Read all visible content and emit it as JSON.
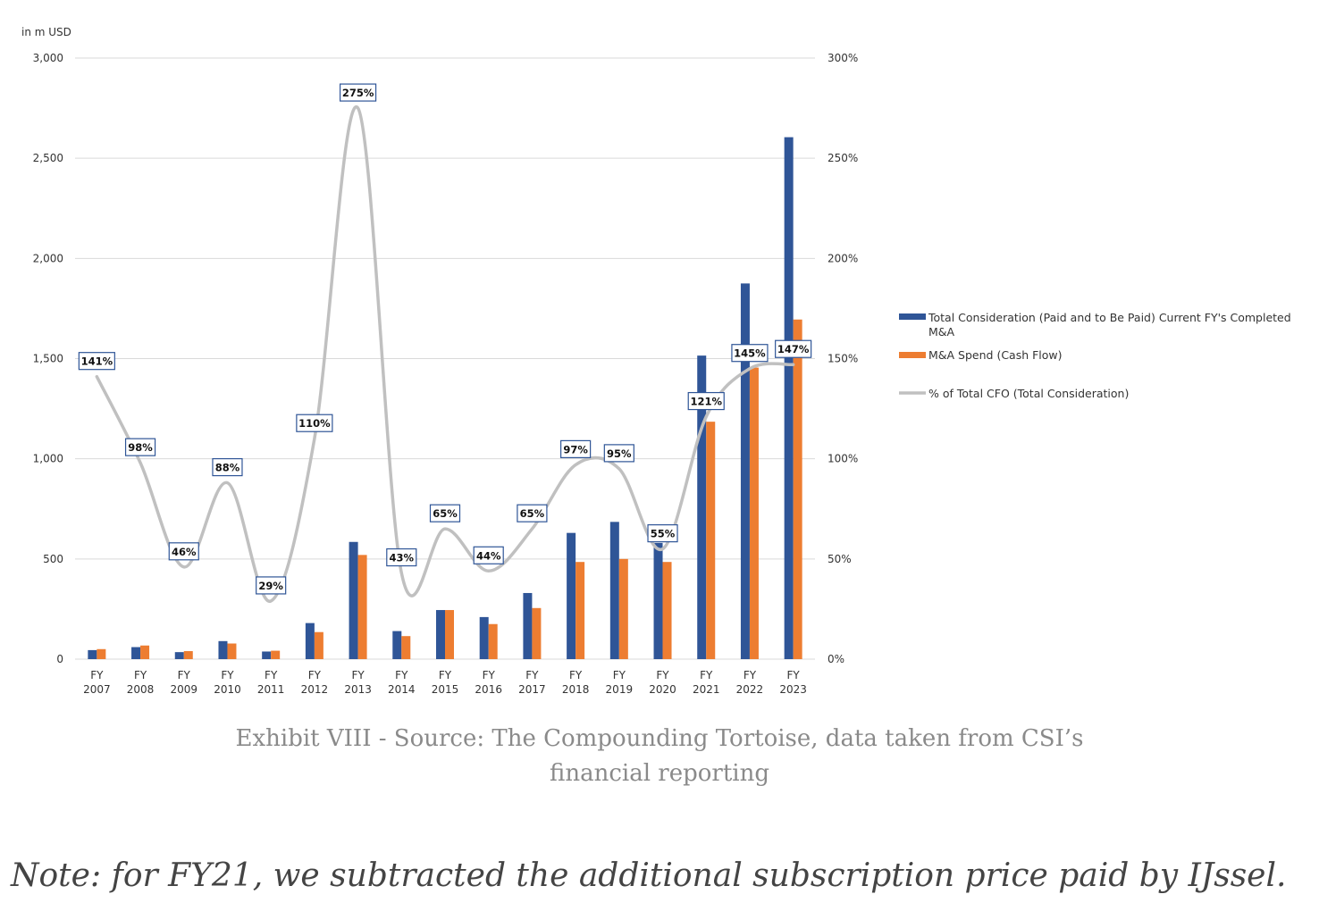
{
  "chart_data": {
    "type": "bar",
    "y_left_unit": "in m USD",
    "ylim_left": [
      0,
      3000
    ],
    "ylim_right": [
      0,
      300
    ],
    "y_left_ticks": [
      "0",
      "500",
      "1,000",
      "1,500",
      "2,000",
      "2,500",
      "3,000"
    ],
    "y_right_ticks": [
      "0%",
      "50%",
      "100%",
      "150%",
      "200%",
      "250%",
      "300%"
    ],
    "grid": true,
    "legend_position": "right",
    "categories": [
      [
        "FY",
        "2007"
      ],
      [
        "FY",
        "2008"
      ],
      [
        "FY",
        "2009"
      ],
      [
        "FY",
        "2010"
      ],
      [
        "FY",
        "2011"
      ],
      [
        "FY",
        "2012"
      ],
      [
        "FY",
        "2013"
      ],
      [
        "FY",
        "2014"
      ],
      [
        "FY",
        "2015"
      ],
      [
        "FY",
        "2016"
      ],
      [
        "FY",
        "2017"
      ],
      [
        "FY",
        "2018"
      ],
      [
        "FY",
        "2019"
      ],
      [
        "FY",
        "2020"
      ],
      [
        "FY",
        "2021"
      ],
      [
        "FY",
        "2022"
      ],
      [
        "FY",
        "2023"
      ]
    ],
    "series": [
      {
        "name": "Total Consideration (Paid and to Be Paid) Current FY's Completed M&A",
        "type": "bar",
        "axis": "left",
        "color": "#2f5597",
        "values": [
          45,
          60,
          35,
          90,
          38,
          180,
          585,
          140,
          245,
          210,
          330,
          630,
          685,
          580,
          1515,
          1875,
          2605
        ]
      },
      {
        "name": "M&A Spend (Cash Flow)",
        "type": "bar",
        "axis": "left",
        "color": "#ed7d31",
        "values": [
          50,
          68,
          40,
          78,
          42,
          135,
          520,
          115,
          245,
          175,
          255,
          485,
          500,
          485,
          1185,
          1455,
          1695
        ]
      },
      {
        "name": "% of Total CFO (Total Consideration)",
        "type": "line",
        "axis": "right",
        "color": "#c0c0c0",
        "smooth": true,
        "values": [
          141,
          98,
          46,
          88,
          29,
          110,
          275,
          43,
          65,
          44,
          65,
          97,
          95,
          55,
          121,
          145,
          147
        ],
        "labels": [
          "141%",
          "98%",
          "46%",
          "88%",
          "29%",
          "110%",
          "275%",
          "43%",
          "65%",
          "44%",
          "65%",
          "97%",
          "95%",
          "55%",
          "121%",
          "145%",
          "147%"
        ]
      }
    ]
  },
  "caption": {
    "line1": "Exhibit VIII - Source: The Compounding Tortoise, data taken from CSI’s",
    "line2": "financial reporting"
  },
  "note": "Note: for FY21, we subtracted the additional subscription price paid by IJssel."
}
